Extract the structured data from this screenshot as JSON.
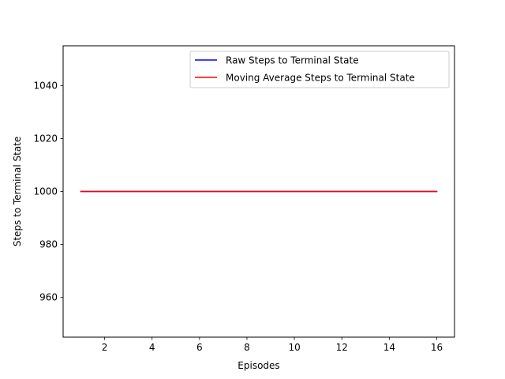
{
  "chart_data": {
    "type": "line",
    "title": "",
    "xlabel": "Episodes",
    "ylabel": "Steps to Terminal State",
    "xlim": [
      0.25,
      16.75
    ],
    "ylim": [
      945,
      1055
    ],
    "xticks": [
      2,
      4,
      6,
      8,
      10,
      12,
      14,
      16
    ],
    "yticks": [
      960,
      980,
      1000,
      1020,
      1040
    ],
    "grid": false,
    "legend_position": "top-right",
    "x": [
      1,
      2,
      3,
      4,
      5,
      6,
      7,
      8,
      9,
      10,
      11,
      12,
      13,
      14,
      15,
      16
    ],
    "series": [
      {
        "name": "Raw Steps to Terminal State",
        "color": "#0000ff",
        "values": [
          1000,
          1000,
          1000,
          1000,
          1000,
          1000,
          1000,
          1000,
          1000,
          1000,
          1000,
          1000,
          1000,
          1000,
          1000,
          1000
        ]
      },
      {
        "name": "Moving Average Steps to Terminal State",
        "color": "#ff0000",
        "values": [
          1000,
          1000,
          1000,
          1000,
          1000,
          1000,
          1000,
          1000,
          1000,
          1000,
          1000,
          1000,
          1000,
          1000,
          1000,
          1000
        ]
      }
    ]
  }
}
